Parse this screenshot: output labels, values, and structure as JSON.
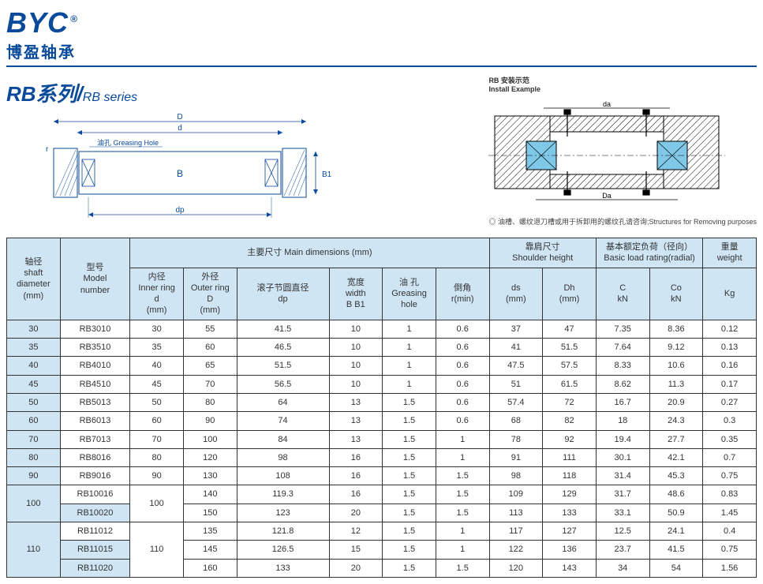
{
  "logo": {
    "byc": "BYC",
    "reg": "®",
    "cn": "博盈轴承"
  },
  "series": {
    "cn": "RB系列",
    "en": "RB series",
    "sep": "/"
  },
  "diagram_labels": {
    "D": "D",
    "d": "d",
    "dp": "dp",
    "B": "B",
    "B1": "B1",
    "r": "r",
    "greasing": "油孔 Greasing Hole",
    "da": "da",
    "Da": "Da",
    "install_title": "RB 安装示范",
    "install_en": "Install Example",
    "note": "◎ 油槽、螺纹退刀槽或用于拆卸用的螺纹孔请咨询;Structures for Removing purposes"
  },
  "headers": {
    "shaft": {
      "cn": "轴径",
      "en1": "shaft",
      "en2": "diameter",
      "unit": "(mm)"
    },
    "model": {
      "cn": "型号",
      "en1": "Model",
      "en2": "number"
    },
    "main_dim": {
      "cn": "主要尺寸",
      "en": "Main dimensions (mm)"
    },
    "shoulder": {
      "cn": "靠肩尺寸",
      "en": "Shoulder height"
    },
    "load": {
      "cn": "基本额定负荷（径向）",
      "en": "Basic load rating(radial)"
    },
    "weight": {
      "cn": "重量",
      "en": "weight"
    },
    "inner": {
      "cn": "内径",
      "en": "Inner ring",
      "sym": "d",
      "unit": "(mm)"
    },
    "outer": {
      "cn": "外径",
      "en": "Outer ring",
      "sym": "D",
      "unit": "(mm)"
    },
    "dp": {
      "cn": "滚子节圆直径",
      "sym": "dp"
    },
    "width": {
      "cn": "宽度",
      "en": "width",
      "sym": "B B1"
    },
    "grease": {
      "cn": "油 孔",
      "en": "Greasing",
      "en2": "hole"
    },
    "chamfer": {
      "cn": "倒角",
      "sym": "r(min)"
    },
    "ds": {
      "sym": "ds",
      "unit": "(mm)"
    },
    "Dh": {
      "sym": "Dh",
      "unit": "(mm)"
    },
    "C": {
      "sym": "C",
      "unit": "kN"
    },
    "Co": {
      "sym": "Co",
      "unit": "kN"
    },
    "kg": "Kg"
  },
  "rows": [
    {
      "shaft": "30",
      "model": "RB3010",
      "d": "30",
      "D": "55",
      "dp": "41.5",
      "w": "10",
      "g": "1",
      "r": "0.6",
      "ds": "37",
      "Dh": "47",
      "C": "7.35",
      "Co": "8.36",
      "kg": "0.12"
    },
    {
      "shaft": "35",
      "model": "RB3510",
      "d": "35",
      "D": "60",
      "dp": "46.5",
      "w": "10",
      "g": "1",
      "r": "0.6",
      "ds": "41",
      "Dh": "51.5",
      "C": "7.64",
      "Co": "9.12",
      "kg": "0.13"
    },
    {
      "shaft": "40",
      "model": "RB4010",
      "d": "40",
      "D": "65",
      "dp": "51.5",
      "w": "10",
      "g": "1",
      "r": "0.6",
      "ds": "47.5",
      "Dh": "57.5",
      "C": "8.33",
      "Co": "10.6",
      "kg": "0.16"
    },
    {
      "shaft": "45",
      "model": "RB4510",
      "d": "45",
      "D": "70",
      "dp": "56.5",
      "w": "10",
      "g": "1",
      "r": "0.6",
      "ds": "51",
      "Dh": "61.5",
      "C": "8.62",
      "Co": "11.3",
      "kg": "0.17"
    },
    {
      "shaft": "50",
      "model": "RB5013",
      "d": "50",
      "D": "80",
      "dp": "64",
      "w": "13",
      "g": "1.5",
      "r": "0.6",
      "ds": "57.4",
      "Dh": "72",
      "C": "16.7",
      "Co": "20.9",
      "kg": "0.27"
    },
    {
      "shaft": "60",
      "model": "RB6013",
      "d": "60",
      "D": "90",
      "dp": "74",
      "w": "13",
      "g": "1.5",
      "r": "0.6",
      "ds": "68",
      "Dh": "82",
      "C": "18",
      "Co": "24.3",
      "kg": "0.3"
    },
    {
      "shaft": "70",
      "model": "RB7013",
      "d": "70",
      "D": "100",
      "dp": "84",
      "w": "13",
      "g": "1.5",
      "r": "1",
      "ds": "78",
      "Dh": "92",
      "C": "19.4",
      "Co": "27.7",
      "kg": "0.35"
    },
    {
      "shaft": "80",
      "model": "RB8016",
      "d": "80",
      "D": "120",
      "dp": "98",
      "w": "16",
      "g": "1.5",
      "r": "1",
      "ds": "91",
      "Dh": "111",
      "C": "30.1",
      "Co": "42.1",
      "kg": "0.7"
    },
    {
      "shaft": "90",
      "model": "RB9016",
      "d": "90",
      "D": "130",
      "dp": "108",
      "w": "16",
      "g": "1.5",
      "r": "1.5",
      "ds": "98",
      "Dh": "118",
      "C": "31.4",
      "Co": "45.3",
      "kg": "0.75"
    },
    {
      "shaft": "100",
      "shaft_rs": 2,
      "d": "100",
      "d_rs": 2,
      "model": "RB10016",
      "D": "140",
      "dp": "119.3",
      "w": "16",
      "g": "1.5",
      "r": "1.5",
      "ds": "109",
      "Dh": "129",
      "C": "31.7",
      "Co": "48.6",
      "kg": "0.83"
    },
    {
      "model": "RB10020",
      "D": "150",
      "dp": "123",
      "w": "20",
      "g": "1.5",
      "r": "1.5",
      "ds": "113",
      "Dh": "133",
      "C": "33.1",
      "Co": "50.9",
      "kg": "1.45"
    },
    {
      "shaft": "110",
      "shaft_rs": 3,
      "d": "110",
      "d_rs": 3,
      "model": "RB11012",
      "D": "135",
      "dp": "121.8",
      "w": "12",
      "g": "1.5",
      "r": "1",
      "ds": "117",
      "Dh": "127",
      "C": "12.5",
      "Co": "24.1",
      "kg": "0.4"
    },
    {
      "model": "RB11015",
      "D": "145",
      "dp": "126.5",
      "w": "15",
      "g": "1.5",
      "r": "1",
      "ds": "122",
      "Dh": "136",
      "C": "23.7",
      "Co": "41.5",
      "kg": "0.75"
    },
    {
      "model": "RB11020",
      "D": "160",
      "dp": "133",
      "w": "20",
      "g": "1.5",
      "r": "1.5",
      "ds": "120",
      "Dh": "143",
      "C": "34",
      "Co": "54",
      "kg": "1.56"
    }
  ],
  "colors": {
    "brand": "#0a4a9a",
    "header_bg": "#cfe5f4",
    "border": "#333333"
  }
}
